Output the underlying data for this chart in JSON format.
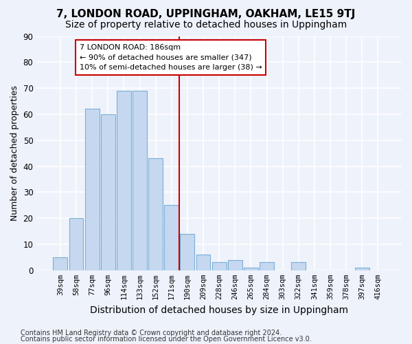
{
  "title": "7, LONDON ROAD, UPPINGHAM, OAKHAM, LE15 9TJ",
  "subtitle": "Size of property relative to detached houses in Uppingham",
  "xlabel": "Distribution of detached houses by size in Uppingham",
  "ylabel": "Number of detached properties",
  "categories": [
    "39sqm",
    "58sqm",
    "77sqm",
    "96sqm",
    "114sqm",
    "133sqm",
    "152sqm",
    "171sqm",
    "190sqm",
    "209sqm",
    "228sqm",
    "246sqm",
    "265sqm",
    "284sqm",
    "303sqm",
    "322sqm",
    "341sqm",
    "359sqm",
    "378sqm",
    "397sqm",
    "416sqm"
  ],
  "values": [
    5,
    20,
    62,
    60,
    69,
    69,
    43,
    25,
    14,
    6,
    3,
    4,
    1,
    3,
    0,
    3,
    0,
    0,
    0,
    1,
    0
  ],
  "bar_color": "#c5d8f0",
  "bar_edge_color": "#7aaed6",
  "vline_x_index": 7.5,
  "vline_color": "#cc0000",
  "annotation_text": "7 LONDON ROAD: 186sqm\n← 90% of detached houses are smaller (347)\n10% of semi-detached houses are larger (38) →",
  "annotation_box_color": "#ffffff",
  "annotation_box_edge_color": "#cc0000",
  "ylim": [
    0,
    90
  ],
  "yticks": [
    0,
    10,
    20,
    30,
    40,
    50,
    60,
    70,
    80,
    90
  ],
  "footer1": "Contains HM Land Registry data © Crown copyright and database right 2024.",
  "footer2": "Contains public sector information licensed under the Open Government Licence v3.0.",
  "background_color": "#eef2fb",
  "grid_color": "#ffffff",
  "title_fontsize": 11,
  "subtitle_fontsize": 10,
  "xlabel_fontsize": 9,
  "ylabel_fontsize": 9,
  "tick_fontsize": 7.5,
  "annotation_fontsize": 8,
  "footer_fontsize": 7
}
